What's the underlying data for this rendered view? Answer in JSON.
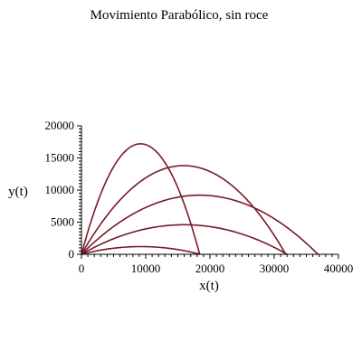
{
  "chart_data": {
    "type": "line",
    "title": "Movimiento Parabólico, sin roce",
    "xlabel": "x(t)",
    "ylabel": "y(t)",
    "xlim": [
      0,
      40000
    ],
    "ylim": [
      0,
      20000
    ],
    "xticks": [
      "0",
      "10000",
      "20000",
      "30000",
      "40000"
    ],
    "yticks": [
      "0",
      "5000",
      "10000",
      "15000",
      "20000"
    ],
    "grid": false,
    "line_color": "#7a1a2a",
    "series": [
      {
        "apex_x": 9250,
        "apex_y": 1200,
        "range_x": 18500
      },
      {
        "apex_x": 16000,
        "apex_y": 4600,
        "range_x": 32000
      },
      {
        "apex_x": 18400,
        "apex_y": 9200,
        "range_x": 36800
      },
      {
        "apex_x": 15900,
        "apex_y": 13800,
        "range_x": 31800
      },
      {
        "apex_x": 9200,
        "apex_y": 17200,
        "range_x": 18400
      }
    ]
  }
}
